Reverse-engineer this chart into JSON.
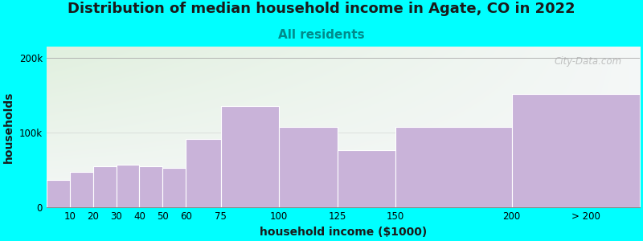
{
  "title": "Distribution of median household income in Agate, CO in 2022",
  "subtitle": "All residents",
  "xlabel": "household income ($1000)",
  "ylabel": "households",
  "background_color": "#00FFFF",
  "bar_color": "#c9b3d9",
  "categories": [
    "10",
    "20",
    "30",
    "40",
    "50",
    "60",
    "75",
    "100",
    "125",
    "150",
    "200",
    "> 200"
  ],
  "values": [
    37000,
    48000,
    55000,
    57000,
    55000,
    53000,
    92000,
    136000,
    108000,
    77000,
    108000,
    152000
  ],
  "ylim": [
    0,
    215000
  ],
  "yticks": [
    0,
    100000,
    200000
  ],
  "ytick_labels": [
    "0",
    "100k",
    "200k"
  ],
  "watermark": "City-Data.com",
  "title_fontsize": 13,
  "subtitle_fontsize": 11,
  "axis_label_fontsize": 10,
  "tick_fontsize": 8.5,
  "subtitle_color": "#008B8B",
  "title_color": "#1a1a1a",
  "bin_edges": [
    0,
    10,
    20,
    30,
    40,
    50,
    60,
    75,
    100,
    125,
    150,
    200,
    255
  ],
  "xtick_positions": [
    10,
    20,
    30,
    40,
    50,
    60,
    75,
    100,
    125,
    150,
    200,
    232
  ],
  "xlim": [
    0,
    255
  ]
}
